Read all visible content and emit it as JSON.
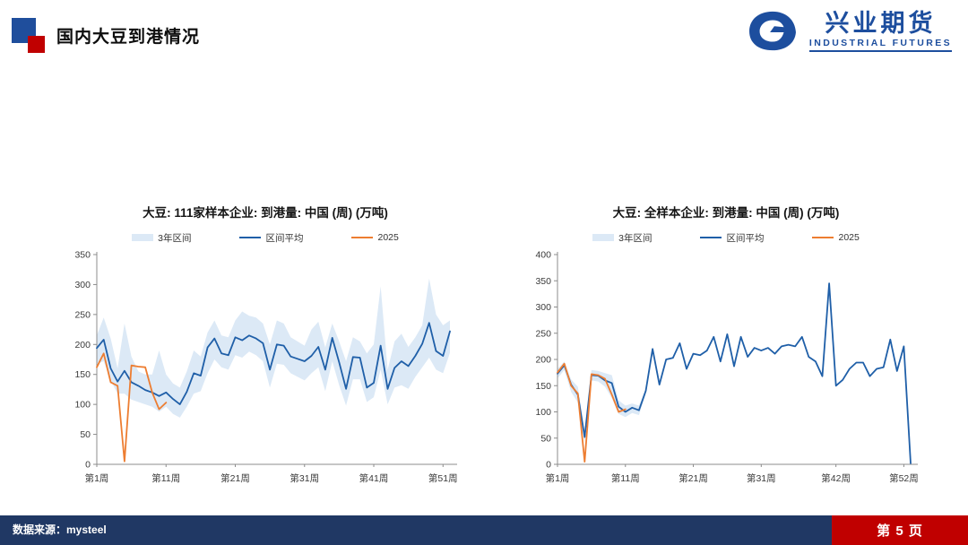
{
  "header": {
    "title": "国内大豆到港情况"
  },
  "logo": {
    "cn": "兴业期货",
    "en": "INDUSTRIAL FUTURES",
    "color": "#1D4E9E"
  },
  "footer": {
    "source": "数据来源：mysteel",
    "page_label": "第 5 页",
    "bar_color": "#203864",
    "page_block_color": "#C00000"
  },
  "theme": {
    "accent_blue": "#1F4E9C",
    "accent_red": "#C00000",
    "band": "#DCE9F6",
    "mean": "#1F5FA8",
    "current": "#ED7D31",
    "axis": "#8c8c8c",
    "tick_text": "#3a3a3a"
  },
  "legend": {
    "band": "3年区间",
    "mean": "区间平均",
    "current": "2025"
  },
  "chart_data": [
    {
      "type": "line",
      "title": "大豆: 111家样本企业: 到港量: 中国 (周) (万吨)",
      "ylabel": "万吨",
      "ylim": [
        0,
        350
      ],
      "ytick_step": 50,
      "weeks": 52,
      "xticks": [
        {
          "week": 1,
          "label": "第1周"
        },
        {
          "week": 11,
          "label": "第11周"
        },
        {
          "week": 21,
          "label": "第21周"
        },
        {
          "week": 31,
          "label": "第31周"
        },
        {
          "week": 41,
          "label": "第41周"
        },
        {
          "week": 51,
          "label": "第51周"
        }
      ],
      "series": [
        {
          "name": "3年区间",
          "type": "band",
          "upper": [
            215,
            245,
            210,
            160,
            235,
            180,
            155,
            150,
            150,
            190,
            150,
            135,
            128,
            155,
            190,
            180,
            220,
            240,
            215,
            212,
            240,
            255,
            248,
            245,
            235,
            200,
            240,
            235,
            212,
            205,
            198,
            225,
            238,
            195,
            235,
            205,
            172,
            212,
            205,
            185,
            200,
            297,
            158,
            205,
            218,
            196,
            212,
            232,
            310,
            250,
            232,
            240
          ],
          "lower": [
            168,
            172,
            140,
            118,
            118,
            108,
            104,
            100,
            96,
            88,
            96,
            84,
            78,
            96,
            118,
            122,
            152,
            175,
            162,
            158,
            182,
            178,
            188,
            182,
            172,
            128,
            168,
            166,
            152,
            146,
            140,
            152,
            162,
            122,
            172,
            132,
            98,
            142,
            142,
            104,
            112,
            158,
            100,
            128,
            132,
            126,
            146,
            162,
            178,
            158,
            152,
            186
          ]
        },
        {
          "name": "区间平均",
          "type": "line",
          "values": [
            194,
            208,
            160,
            138,
            156,
            137,
            131,
            124,
            120,
            114,
            120,
            109,
            100,
            121,
            152,
            148,
            195,
            210,
            185,
            182,
            212,
            207,
            215,
            210,
            202,
            158,
            200,
            198,
            180,
            176,
            172,
            181,
            196,
            158,
            211,
            170,
            126,
            179,
            178,
            128,
            136,
            198,
            126,
            161,
            172,
            164,
            181,
            201,
            236,
            189,
            181,
            222
          ]
        },
        {
          "name": "2025",
          "type": "line",
          "values": [
            162,
            185,
            137,
            131,
            5,
            165,
            163,
            162,
            120,
            92,
            103
          ]
        }
      ]
    },
    {
      "type": "line",
      "title": "大豆: 全样本企业: 到港量: 中国 (周) (万吨)",
      "ylabel": "万吨",
      "ylim": [
        0,
        400
      ],
      "ytick_step": 50,
      "weeks": 53,
      "xticks": [
        {
          "week": 1,
          "label": "第1周"
        },
        {
          "week": 11,
          "label": "第11周"
        },
        {
          "week": 21,
          "label": "第21周"
        },
        {
          "week": 31,
          "label": "第31周"
        },
        {
          "week": 42,
          "label": "第42周"
        },
        {
          "week": 52,
          "label": "第52周"
        }
      ],
      "series": [
        {
          "name": "3年区间",
          "type": "band",
          "upper": [
            182,
            196,
            162,
            148,
            62,
            180,
            178,
            174,
            170,
            122,
            112,
            116,
            112,
            145
          ],
          "lower": [
            164,
            180,
            138,
            118,
            42,
            160,
            158,
            148,
            126,
            96,
            90,
            98,
            94,
            134
          ]
        },
        {
          "name": "区间平均",
          "type": "line",
          "values": [
            173,
            189,
            152,
            133,
            52,
            170,
            169,
            160,
            155,
            110,
            100,
            108,
            103,
            140,
            220,
            152,
            200,
            203,
            231,
            182,
            211,
            208,
            217,
            243,
            196,
            248,
            187,
            243,
            205,
            222,
            217,
            222,
            211,
            225,
            228,
            225,
            243,
            205,
            196,
            168,
            345,
            150,
            161,
            182,
            194,
            194,
            168,
            182,
            185,
            238,
            178,
            225,
            2
          ]
        },
        {
          "name": "2025",
          "type": "line",
          "values": [
            175,
            192,
            150,
            135,
            5,
            172,
            170,
            163,
            133,
            100,
            105
          ]
        }
      ]
    }
  ]
}
